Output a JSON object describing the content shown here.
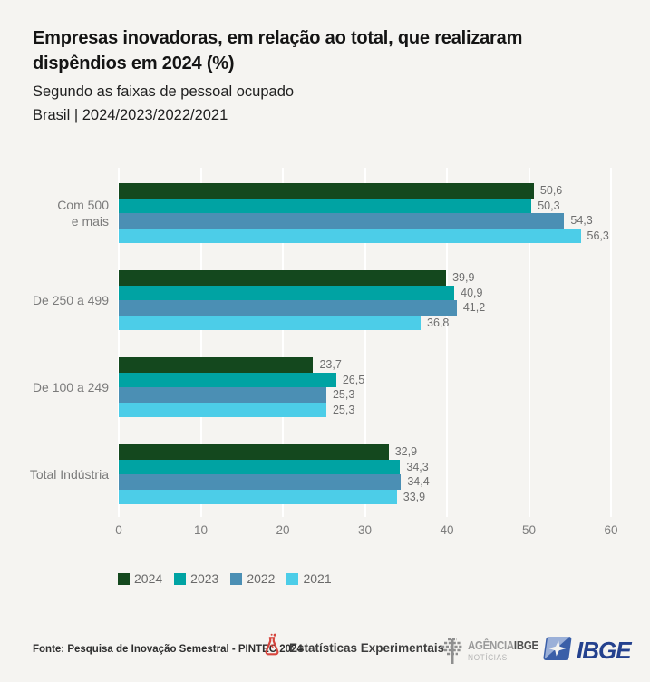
{
  "page": {
    "title_line1": "Empresas inovadoras, em relação ao total, que realizaram",
    "title_line2": "dispêndios em 2024 (%)",
    "subtitle": "Segundo as faixas de pessoal ocupado",
    "scope": "Brasil | 2024/2023/2022/2021"
  },
  "chart_data": {
    "type": "bar",
    "orientation": "horizontal",
    "title": "Empresas inovadoras, em relação ao total, que realizaram dispêndios em 2024 (%)",
    "subtitle": "Segundo as faixas de pessoal ocupado",
    "region_period": "Brasil | 2024/2023/2022/2021",
    "unit": "%",
    "categories": [
      "Com 500\ne mais",
      "De 250 a 499",
      "De 100 a 249",
      "Total Indústria"
    ],
    "series": [
      {
        "name": "2024",
        "color": "#14481e",
        "values": [
          50.6,
          39.9,
          23.7,
          32.9
        ]
      },
      {
        "name": "2023",
        "color": "#00a3a3",
        "values": [
          50.3,
          40.9,
          26.5,
          34.3
        ]
      },
      {
        "name": "2022",
        "color": "#4b8fb4",
        "values": [
          54.3,
          41.2,
          25.3,
          34.4
        ]
      },
      {
        "name": "2021",
        "color": "#4ccde8",
        "values": [
          56.3,
          36.8,
          25.3,
          33.9
        ]
      }
    ],
    "x_ticks": [
      0,
      10,
      20,
      30,
      40,
      50,
      60
    ],
    "xlim": [
      0,
      62
    ],
    "grid": "vertical-white-lines",
    "legend_position": "bottom-left",
    "value_label_format": "comma-decimal"
  },
  "footer": {
    "source": "Fonte: Pesquisa de Inovação Semestral - PINTEC 2024",
    "experimental": "Estatísticas Experimentais",
    "agencia_name": "AGÊNCIA",
    "agencia_ibge": "IBGE",
    "agencia_sub": "NOTÍCIAS",
    "ibge_wordmark": "IBGE"
  },
  "colors": {
    "background": "#f5f4f1",
    "gridline": "#ffffff",
    "category_label": "#7b7b7b",
    "value_label": "#6e6e6e",
    "flask_red": "#d6453d",
    "ibge_blue_dark": "#3a5fa8",
    "ibge_blue_light": "#9bb0d8",
    "ibge_wordmark_blue": "#24418e",
    "agencia_gray": "#8f8f8f"
  }
}
